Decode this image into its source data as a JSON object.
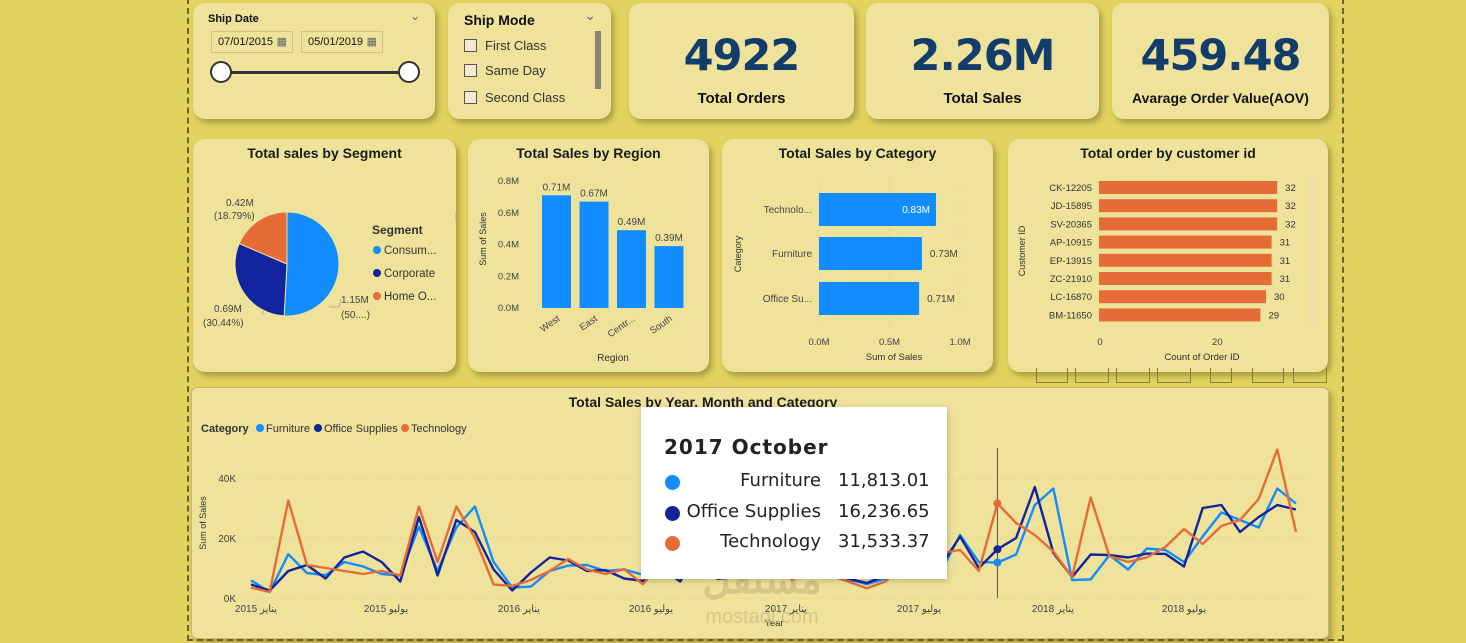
{
  "filters": {
    "ship_date": {
      "label": "Ship Date",
      "start": "07/01/2015",
      "end": "05/01/2019"
    },
    "ship_mode": {
      "label": "Ship Mode",
      "options": [
        "First Class",
        "Same Day",
        "Second Class"
      ]
    }
  },
  "kpis": [
    {
      "value": "4922",
      "label": "Total Orders"
    },
    {
      "value": "2.26M",
      "label": "Total Sales"
    },
    {
      "value": "459.48",
      "label": "Avarage Order Value(AOV)"
    }
  ],
  "segment_chart": {
    "title": "Total sales by Segment",
    "legend_title": "Segment",
    "legend": [
      "Consum...",
      "Corporate",
      "Home O..."
    ],
    "labels": [
      {
        "value": "0.42M",
        "pct": "(18.79%)"
      },
      {
        "value": "0.69M",
        "pct": "(30.44%)"
      },
      {
        "value": "1.15M",
        "pct": "(50....)"
      }
    ]
  },
  "region_chart": {
    "title": "Total Sales by Region",
    "xlabel": "Region",
    "ylabel": "Sum of Sales"
  },
  "category_chart": {
    "title": "Total Sales by Category",
    "xlabel": "Sum of Sales",
    "ylabel": "Category"
  },
  "customer_chart": {
    "title": "Total order by customer id",
    "xlabel": "Count of Order ID",
    "ylabel": "Customer ID"
  },
  "line_chart": {
    "title": "Total Sales by Year, Month and Category",
    "legend_title": "Category",
    "xlabel": "Year",
    "ylabel": "Sum of Sales"
  },
  "tooltip": {
    "title": "2017 October",
    "rows": [
      {
        "name": "Furniture",
        "value": "11,813.01"
      },
      {
        "name": "Office Supplies",
        "value": "16,236.65"
      },
      {
        "name": "Technology",
        "value": "31,533.37"
      }
    ]
  },
  "watermark": {
    "text": "مستقل",
    "sub": "mostaql.com"
  },
  "colors": {
    "light_blue": "#118dff",
    "dark_blue": "#12239e",
    "orange": "#e66c37",
    "kpi_text": "#123d6b",
    "card_bg": "#efe29a",
    "page_bg": "#e2d35f"
  },
  "chart_data": [
    {
      "type": "pie",
      "title": "Total sales by Segment",
      "categories": [
        "Consum...",
        "Corporate",
        "Home O..."
      ],
      "values": [
        1.15,
        0.69,
        0.42
      ],
      "percents": [
        50.77,
        30.44,
        18.79
      ],
      "units": "M"
    },
    {
      "type": "bar",
      "title": "Total Sales by Region",
      "categories": [
        "West",
        "East",
        "Centr...",
        "South"
      ],
      "values": [
        0.71,
        0.67,
        0.49,
        0.39
      ],
      "data_labels": [
        "0.71M",
        "0.67M",
        "0.49M",
        "0.39M"
      ],
      "y_ticks": [
        "0.0M",
        "0.2M",
        "0.4M",
        "0.6M",
        "0.8M"
      ],
      "ylim": [
        0,
        0.8
      ],
      "xlabel": "Region",
      "ylabel": "Sum of Sales"
    },
    {
      "type": "bar",
      "orientation": "horizontal",
      "title": "Total Sales by Category",
      "categories": [
        "Technolo...",
        "Furniture",
        "Office Su..."
      ],
      "values": [
        0.83,
        0.73,
        0.71
      ],
      "data_labels": [
        "0.83M",
        "0.73M",
        "0.71M"
      ],
      "x_ticks": [
        "0.0M",
        "0.5M",
        "1.0M"
      ],
      "xlim": [
        0,
        1.0
      ],
      "xlabel": "Sum of Sales",
      "ylabel": "Category"
    },
    {
      "type": "bar",
      "orientation": "horizontal",
      "title": "Total order by customer id",
      "categories": [
        "CK-12205",
        "JD-15895",
        "SV-20365",
        "AP-10915",
        "EP-13915",
        "ZC-21910",
        "LC-16870",
        "BM-11650"
      ],
      "values": [
        32,
        32,
        32,
        31,
        31,
        31,
        30,
        29
      ],
      "x_ticks": [
        "0",
        "20"
      ],
      "xlim": [
        0,
        37
      ],
      "xlabel": "Count of Order ID",
      "ylabel": "Customer ID"
    },
    {
      "type": "line",
      "title": "Total Sales by Year, Month and Category",
      "x_ticks": [
        "يناير 2015",
        "يوليو 2015",
        "يناير 2016",
        "يوليو 2016",
        "يناير 2017",
        "يوليو 2017",
        "يناير 2018",
        "يوليو 2018"
      ],
      "y_ticks": [
        "0K",
        "20K",
        "40K"
      ],
      "ylim": [
        0,
        45000
      ],
      "xlabel": "Year",
      "ylabel": "Sum of Sales",
      "series": [
        {
          "name": "Furniture",
          "values": [
            5900,
            2000,
            14600,
            8300,
            7600,
            12000,
            10500,
            8000,
            7500,
            23800,
            9000,
            23500,
            30500,
            12000,
            3500,
            3800,
            9000,
            10800,
            11000,
            9000,
            9500,
            7800,
            14000,
            10500,
            12500,
            7600,
            10000,
            9000,
            13000,
            8700,
            14000,
            10000,
            6300,
            4600,
            6500,
            15000,
            24000,
            9000,
            21000,
            12000,
            11813,
            14500,
            31000,
            36500,
            6000,
            6200,
            14300,
            9500,
            16500,
            16000,
            12000,
            20500,
            28500,
            26000,
            23500,
            36500,
            31500
          ]
        },
        {
          "name": "Office Supplies",
          "values": [
            4500,
            2500,
            9000,
            11000,
            6500,
            13500,
            15500,
            12000,
            5500,
            27000,
            7500,
            26000,
            22000,
            9500,
            2500,
            8500,
            13500,
            12500,
            9000,
            9300,
            6500,
            5700,
            10000,
            5500,
            16000,
            6400,
            7000,
            11000,
            13500,
            6200,
            17000,
            10000,
            6500,
            5000,
            7500,
            12000,
            21000,
            11000,
            20500,
            10000,
            16237,
            20000,
            37000,
            15000,
            7000,
            14500,
            14300,
            13500,
            14800,
            14700,
            10500,
            30000,
            31000,
            22000,
            27000,
            31000,
            29500
          ]
        },
        {
          "name": "Technology",
          "values": [
            3500,
            2000,
            32500,
            11000,
            10000,
            9000,
            8000,
            9000,
            7500,
            30500,
            12000,
            30500,
            20000,
            4500,
            4000,
            6000,
            9000,
            13000,
            9500,
            8000,
            9600,
            4600,
            12000,
            9000,
            9500,
            8000,
            7900,
            8600,
            12700,
            6000,
            12200,
            7600,
            5500,
            3200,
            5500,
            12000,
            29000,
            15000,
            16000,
            9000,
            31533,
            25000,
            21000,
            15500,
            7000,
            33500,
            14000,
            12000,
            13500,
            17000,
            23000,
            18000,
            24000,
            26000,
            33000,
            49500,
            22000
          ]
        }
      ]
    }
  ]
}
